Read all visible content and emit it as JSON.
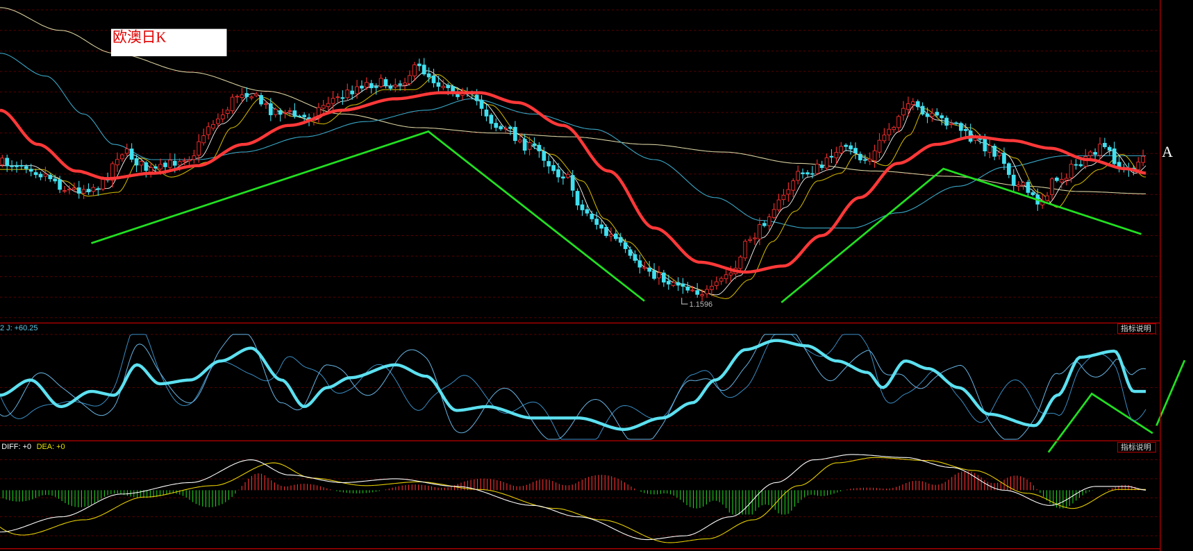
{
  "window": {
    "title": "欧澳日K",
    "marker": "A",
    "low_label": "1.1596"
  },
  "kdj_panel": {
    "label": "2 J: +60.25",
    "button": "指标说明"
  },
  "macd_panel": {
    "diff_label": "DIFF: +0",
    "dea_label": "DEA: +0",
    "button": "指标说明"
  }
}
